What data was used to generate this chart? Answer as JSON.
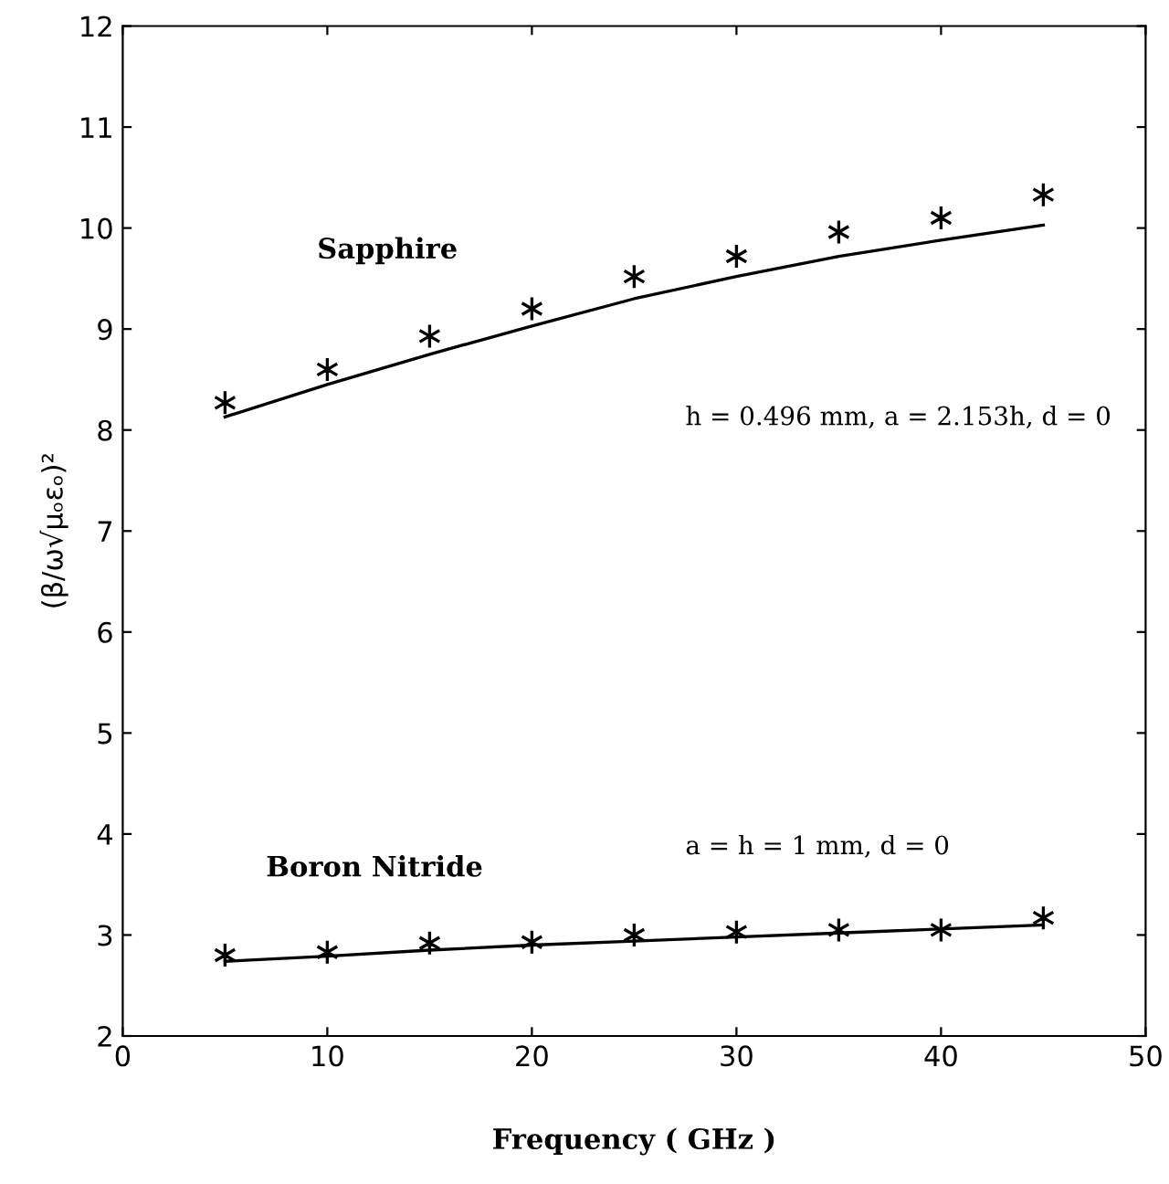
{
  "chart_data": {
    "type": "line",
    "xlabel": "Frequency ( GHz )",
    "ylabel": "(β/ω√μₒεₒ)²",
    "x": [
      5,
      10,
      15,
      20,
      25,
      30,
      35,
      40,
      45
    ],
    "series": [
      {
        "name": "Sapphire",
        "type": "scatter",
        "marker": "cross",
        "color": "#000000",
        "values": [
          8.27,
          8.6,
          8.93,
          9.2,
          9.52,
          9.72,
          9.96,
          10.1,
          10.33
        ]
      },
      {
        "color": "#000000",
        "values": [
          8.13,
          8.45,
          8.75,
          9.03,
          9.3,
          9.52,
          9.72,
          9.88,
          10.03
        ]
      },
      {
        "name": "Boron Nitride",
        "type": "scatter",
        "marker": "cross",
        "color": "#000000",
        "values": [
          2.8,
          2.83,
          2.92,
          2.93,
          3.0,
          3.03,
          3.05,
          3.05,
          3.17
        ]
      },
      {
        "color": "#000000",
        "values": [
          2.74,
          2.79,
          2.85,
          2.9,
          2.94,
          2.98,
          3.02,
          3.06,
          3.1
        ]
      }
    ],
    "annotations": [
      "h = 0.496 mm, a = 2.153h, d = 0",
      "a = h = 1 mm, d = 0"
    ],
    "xlim": [
      0,
      50
    ],
    "ylim": [
      2,
      12
    ],
    "xticks": [
      0,
      10,
      20,
      30,
      40,
      50
    ],
    "yticks": [
      2,
      3,
      4,
      5,
      6,
      7,
      8,
      9,
      10,
      11,
      12
    ],
    "grid": false,
    "legend": false
  }
}
